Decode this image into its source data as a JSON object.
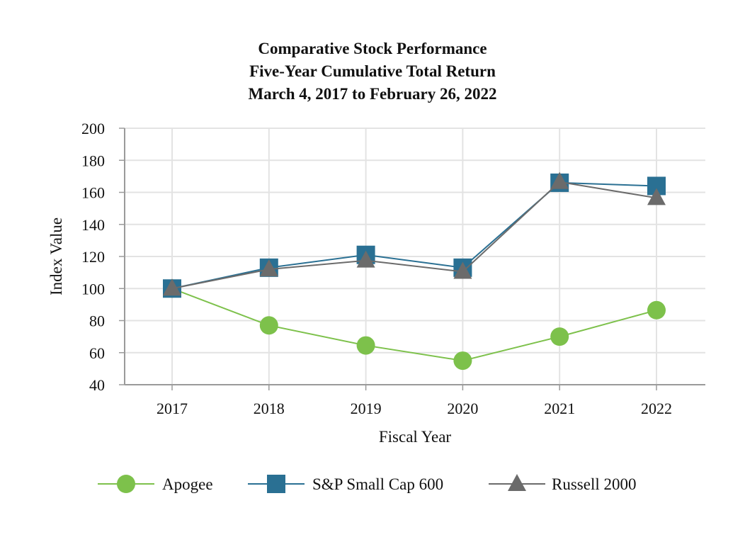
{
  "chart_data": {
    "type": "line",
    "title_lines": [
      "Comparative Stock Performance",
      "Five-Year Cumulative Total Return",
      "March 4, 2017 to February 26, 2022"
    ],
    "xlabel": "Fiscal Year",
    "ylabel": "Index Value",
    "categories": [
      "2017",
      "2018",
      "2019",
      "2020",
      "2021",
      "2022"
    ],
    "ylim": [
      40,
      200
    ],
    "yticks": [
      "40",
      "60",
      "80",
      "100",
      "120",
      "140",
      "160",
      "180",
      "200"
    ],
    "grid": true,
    "legend_position": "bottom",
    "series": [
      {
        "name": "Apogee",
        "marker": "circle",
        "color": "#7dc14b",
        "values": [
          100,
          77,
          64.5,
          55,
          70,
          86.5
        ]
      },
      {
        "name": "S&P Small Cap 600",
        "marker": "square",
        "color": "#2a7093",
        "values": [
          100,
          113,
          121,
          113,
          166,
          164
        ]
      },
      {
        "name": "Russell 2000",
        "marker": "triangle",
        "color": "#6b6b6b",
        "values": [
          100,
          112,
          117.5,
          110.5,
          166.5,
          156.5
        ]
      }
    ]
  }
}
